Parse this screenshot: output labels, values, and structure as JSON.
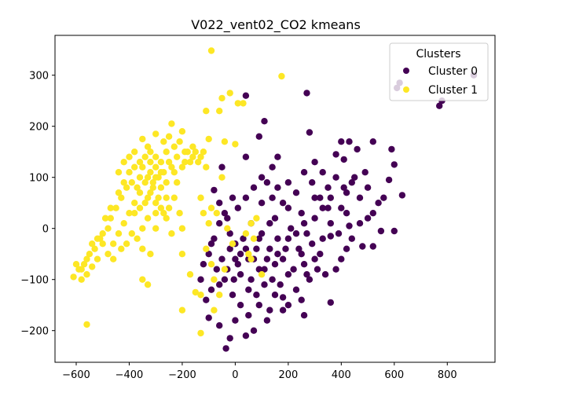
{
  "chart_data": {
    "type": "scatter",
    "title": "V022_vent02_CO2 kmeans",
    "xlabel": "",
    "ylabel": "",
    "xlim": [
      -680,
      980
    ],
    "ylim": [
      -262,
      378
    ],
    "xticks": [
      -600,
      -400,
      -200,
      0,
      200,
      400,
      600,
      800
    ],
    "yticks": [
      -200,
      -100,
      0,
      100,
      200,
      300
    ],
    "xtick_labels": [
      "−600",
      "−400",
      "−200",
      "0",
      "200",
      "400",
      "600",
      "800"
    ],
    "ytick_labels": [
      "−200",
      "−100",
      "0",
      "100",
      "200",
      "300"
    ],
    "grid": false,
    "legend": {
      "title": "Clusters",
      "placement": "top-right",
      "entries": [
        "Cluster 0",
        "Cluster 1"
      ]
    },
    "series": [
      {
        "name": "Cluster 0",
        "color": "#440154",
        "points": [
          [
            40,
            260
          ],
          [
            270,
            265
          ],
          [
            280,
            188
          ],
          [
            520,
            170
          ],
          [
            590,
            155
          ],
          [
            600,
            125
          ],
          [
            490,
            110
          ],
          [
            580,
            95
          ],
          [
            630,
            65
          ],
          [
            560,
            60
          ],
          [
            550,
            -5
          ],
          [
            600,
            -5
          ],
          [
            520,
            -35
          ],
          [
            480,
            -35
          ],
          [
            360,
            -15
          ],
          [
            430,
            5
          ],
          [
            160,
            140
          ],
          [
            40,
            140
          ],
          [
            380,
            145
          ],
          [
            410,
            135
          ],
          [
            460,
            155
          ],
          [
            450,
            100
          ],
          [
            420,
            70
          ],
          [
            350,
            40
          ],
          [
            300,
            60
          ],
          [
            250,
            30
          ],
          [
            200,
            40
          ],
          [
            150,
            20
          ],
          [
            100,
            50
          ],
          [
            -50,
            120
          ],
          [
            -80,
            75
          ],
          [
            -60,
            50
          ],
          [
            -30,
            20
          ],
          [
            -20,
            -10
          ],
          [
            0,
            -30
          ],
          [
            20,
            -50
          ],
          [
            50,
            -60
          ],
          [
            80,
            -40
          ],
          [
            110,
            -80
          ],
          [
            140,
            -100
          ],
          [
            170,
            -110
          ],
          [
            200,
            -90
          ],
          [
            230,
            -120
          ],
          [
            260,
            -70
          ],
          [
            290,
            -30
          ],
          [
            320,
            -50
          ],
          [
            340,
            -90
          ],
          [
            380,
            -80
          ],
          [
            400,
            -60
          ],
          [
            250,
            -140
          ],
          [
            360,
            -145
          ],
          [
            180,
            -135
          ],
          [
            90,
            -150
          ],
          [
            120,
            -180
          ],
          [
            70,
            -200
          ],
          [
            40,
            -210
          ],
          [
            0,
            -180
          ],
          [
            -20,
            -215
          ],
          [
            -35,
            -235
          ],
          [
            -60,
            -190
          ],
          [
            -100,
            -175
          ],
          [
            -110,
            -140
          ],
          [
            -90,
            -120
          ],
          [
            -70,
            -80
          ],
          [
            -50,
            -60
          ],
          [
            60,
            -100
          ],
          [
            90,
            -20
          ],
          [
            130,
            10
          ],
          [
            160,
            -20
          ],
          [
            180,
            -60
          ],
          [
            210,
            0
          ],
          [
            240,
            -40
          ],
          [
            270,
            -10
          ],
          [
            300,
            20
          ],
          [
            330,
            -20
          ],
          [
            360,
            10
          ],
          [
            390,
            -10
          ],
          [
            420,
            30
          ],
          [
            440,
            -20
          ],
          [
            470,
            10
          ],
          [
            500,
            20
          ],
          [
            520,
            30
          ],
          [
            540,
            50
          ],
          [
            500,
            80
          ],
          [
            470,
            60
          ],
          [
            440,
            90
          ],
          [
            410,
            80
          ],
          [
            380,
            100
          ],
          [
            350,
            80
          ],
          [
            320,
            60
          ],
          [
            290,
            90
          ],
          [
            260,
            110
          ],
          [
            230,
            70
          ],
          [
            200,
            90
          ],
          [
            180,
            50
          ],
          [
            160,
            80
          ],
          [
            140,
            60
          ],
          [
            120,
            90
          ],
          [
            100,
            100
          ],
          [
            70,
            80
          ],
          [
            40,
            60
          ],
          [
            10,
            40
          ],
          [
            -10,
            60
          ],
          [
            -40,
            30
          ],
          [
            -60,
            10
          ],
          [
            -80,
            -20
          ],
          [
            -100,
            -50
          ],
          [
            -120,
            -70
          ],
          [
            -130,
            -100
          ],
          [
            -40,
            -100
          ],
          [
            -10,
            -130
          ],
          [
            20,
            -90
          ],
          [
            50,
            -120
          ],
          [
            80,
            -130
          ],
          [
            110,
            -110
          ],
          [
            150,
            -70
          ],
          [
            190,
            -40
          ],
          [
            220,
            -80
          ],
          [
            250,
            -50
          ],
          [
            280,
            -100
          ],
          [
            310,
            -80
          ],
          [
            130,
            -40
          ],
          [
            100,
            -10
          ],
          [
            60,
            10
          ],
          [
            30,
            -20
          ],
          [
            0,
            -60
          ],
          [
            -30,
            -80
          ],
          [
            -60,
            -110
          ],
          [
            150,
            -130
          ],
          [
            200,
            -150
          ],
          [
            260,
            -170
          ],
          [
            -90,
            -30
          ],
          [
            610,
            275
          ],
          [
            620,
            285
          ],
          [
            770,
            240
          ],
          [
            780,
            250
          ],
          [
            900,
            300
          ],
          [
            110,
            210
          ],
          [
            90,
            180
          ],
          [
            140,
            120
          ],
          [
            330,
            110
          ],
          [
            430,
            170
          ],
          [
            400,
            170
          ],
          [
            300,
            130
          ],
          [
            180,
            -160
          ],
          [
            -5,
            -100
          ],
          [
            230,
            -10
          ],
          [
            160,
            -50
          ],
          [
            70,
            -60
          ],
          [
            90,
            -80
          ],
          [
            120,
            -60
          ],
          [
            40,
            -40
          ],
          [
            10,
            -70
          ],
          [
            -20,
            -40
          ],
          [
            200,
            -20
          ],
          [
            260,
            10
          ],
          [
            330,
            40
          ],
          [
            360,
            60
          ],
          [
            400,
            40
          ],
          [
            420,
            -40
          ],
          [
            300,
            -60
          ],
          [
            270,
            -90
          ],
          [
            130,
            -160
          ],
          [
            50,
            -170
          ],
          [
            20,
            -150
          ]
        ]
      },
      {
        "name": "Cluster 1",
        "color": "#fde725",
        "points": [
          [
            -90,
            348
          ],
          [
            175,
            298
          ],
          [
            -50,
            255
          ],
          [
            -20,
            265
          ],
          [
            10,
            245
          ],
          [
            30,
            245
          ],
          [
            -60,
            230
          ],
          [
            -110,
            230
          ],
          [
            -100,
            175
          ],
          [
            -40,
            170
          ],
          [
            0,
            165
          ],
          [
            -250,
            180
          ],
          [
            -230,
            160
          ],
          [
            -240,
            205
          ],
          [
            -200,
            190
          ],
          [
            -300,
            185
          ],
          [
            -330,
            160
          ],
          [
            -350,
            175
          ],
          [
            -270,
            170
          ],
          [
            -260,
            150
          ],
          [
            -280,
            130
          ],
          [
            -300,
            140
          ],
          [
            -320,
            130
          ],
          [
            -380,
            120
          ],
          [
            -400,
            110
          ],
          [
            -360,
            100
          ],
          [
            -410,
            80
          ],
          [
            -430,
            60
          ],
          [
            -450,
            40
          ],
          [
            -470,
            20
          ],
          [
            -480,
            0
          ],
          [
            -500,
            -10
          ],
          [
            -510,
            -20
          ],
          [
            -530,
            -40
          ],
          [
            -550,
            -50
          ],
          [
            -570,
            -70
          ],
          [
            -590,
            -80
          ],
          [
            -610,
            -95
          ],
          [
            -480,
            -50
          ],
          [
            -460,
            -30
          ],
          [
            -440,
            -10
          ],
          [
            -420,
            10
          ],
          [
            -400,
            30
          ],
          [
            -380,
            50
          ],
          [
            -360,
            70
          ],
          [
            -340,
            90
          ],
          [
            -320,
            110
          ],
          [
            -300,
            100
          ],
          [
            -280,
            80
          ],
          [
            -260,
            60
          ],
          [
            -250,
            40
          ],
          [
            -300,
            30
          ],
          [
            -330,
            20
          ],
          [
            -350,
            0
          ],
          [
            -370,
            -20
          ],
          [
            -390,
            -10
          ],
          [
            -410,
            -30
          ],
          [
            -430,
            -40
          ],
          [
            -460,
            -60
          ],
          [
            -520,
            -60
          ],
          [
            -540,
            -75
          ],
          [
            -560,
            -90
          ],
          [
            -580,
            -100
          ],
          [
            -440,
            110
          ],
          [
            -420,
            130
          ],
          [
            -400,
            140
          ],
          [
            -380,
            150
          ],
          [
            -360,
            130
          ],
          [
            -340,
            140
          ],
          [
            -320,
            150
          ],
          [
            -300,
            120
          ],
          [
            -280,
            110
          ],
          [
            -260,
            90
          ],
          [
            -240,
            120
          ],
          [
            -220,
            140
          ],
          [
            -200,
            120
          ],
          [
            -180,
            150
          ],
          [
            -160,
            140
          ],
          [
            -140,
            130
          ],
          [
            -120,
            150
          ],
          [
            -110,
            120
          ],
          [
            -160,
            160
          ],
          [
            -190,
            130
          ],
          [
            -220,
            90
          ],
          [
            -230,
            60
          ],
          [
            -210,
            30
          ],
          [
            -200,
            -50
          ],
          [
            -170,
            -90
          ],
          [
            -150,
            -125
          ],
          [
            -130,
            -130
          ],
          [
            -200,
            -160
          ],
          [
            -130,
            -205
          ],
          [
            -330,
            -110
          ],
          [
            -350,
            -100
          ],
          [
            -560,
            -188
          ],
          [
            -350,
            -40
          ],
          [
            -320,
            -50
          ],
          [
            -300,
            0
          ],
          [
            -270,
            30
          ],
          [
            -240,
            -10
          ],
          [
            -200,
            0
          ],
          [
            -120,
            30
          ],
          [
            -100,
            10
          ],
          [
            -110,
            -40
          ],
          [
            -90,
            -70
          ],
          [
            -80,
            -100
          ],
          [
            -60,
            -130
          ],
          [
            -80,
            -160
          ],
          [
            -40,
            -80
          ],
          [
            -30,
            0
          ],
          [
            -10,
            -30
          ],
          [
            40,
            -10
          ],
          [
            50,
            -50
          ],
          [
            60,
            -60
          ],
          [
            70,
            -20
          ],
          [
            100,
            -90
          ],
          [
            80,
            20
          ],
          [
            60,
            10
          ],
          [
            -130,
            60
          ],
          [
            -90,
            40
          ],
          [
            -70,
            30
          ],
          [
            -50,
            100
          ],
          [
            -330,
            60
          ],
          [
            -310,
            80
          ],
          [
            -290,
            60
          ],
          [
            -370,
            80
          ],
          [
            -390,
            90
          ],
          [
            -350,
            120
          ],
          [
            -420,
            90
          ],
          [
            -440,
            70
          ],
          [
            -470,
            40
          ],
          [
            -490,
            20
          ],
          [
            -500,
            -30
          ],
          [
            -520,
            -20
          ],
          [
            -540,
            -30
          ],
          [
            -560,
            -60
          ],
          [
            -580,
            -80
          ],
          [
            -600,
            -70
          ],
          [
            -380,
            30
          ],
          [
            -360,
            40
          ],
          [
            -340,
            50
          ],
          [
            -320,
            70
          ],
          [
            -300,
            50
          ],
          [
            -280,
            40
          ],
          [
            -260,
            20
          ],
          [
            -330,
            100
          ],
          [
            -310,
            90
          ],
          [
            -290,
            100
          ],
          [
            -270,
            110
          ],
          [
            -250,
            130
          ],
          [
            -230,
            110
          ],
          [
            -210,
            170
          ],
          [
            -190,
            150
          ],
          [
            -170,
            130
          ],
          [
            -150,
            150
          ],
          [
            -130,
            140
          ]
        ]
      }
    ]
  }
}
